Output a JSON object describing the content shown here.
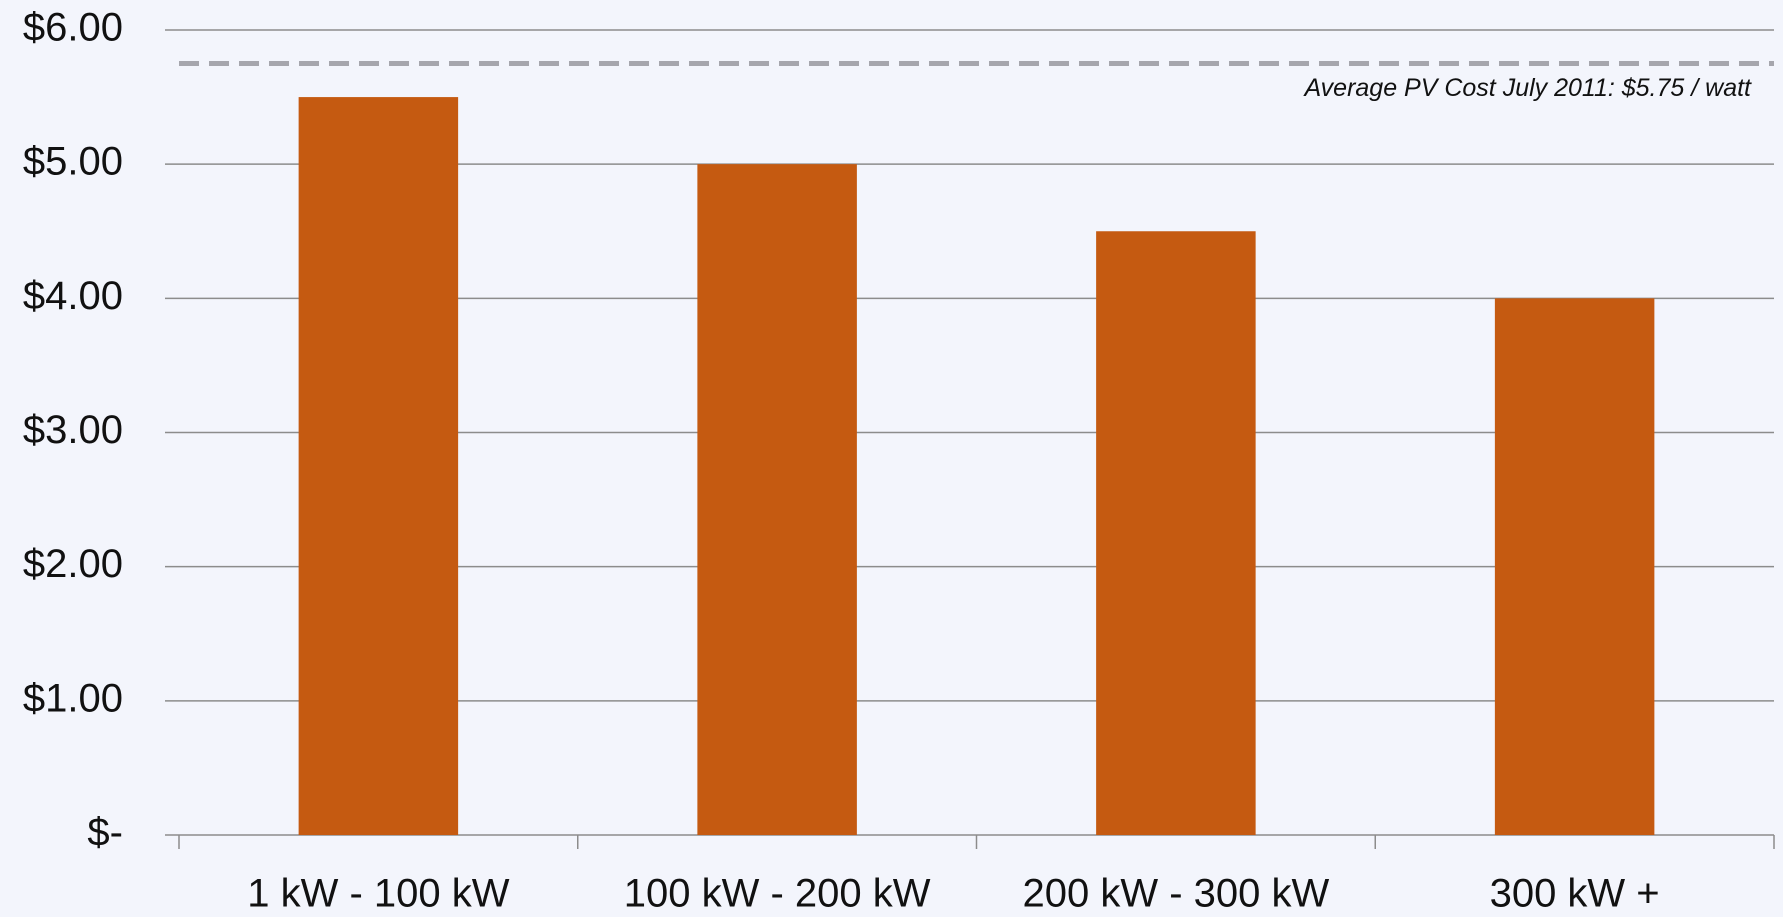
{
  "chart_data": {
    "type": "bar",
    "categories": [
      "1 kW - 100 kW",
      "100 kW - 200 kW",
      "200 kW - 300 kW",
      "300 kW +"
    ],
    "values": [
      5.5,
      5.0,
      4.5,
      4.0
    ],
    "color": "#c55a11",
    "ylim": [
      0,
      6
    ],
    "yticks": [
      {
        "value": 0,
        "label": "$-"
      },
      {
        "value": 1,
        "label": "$1.00"
      },
      {
        "value": 2,
        "label": "$2.00"
      },
      {
        "value": 3,
        "label": "$3.00"
      },
      {
        "value": 4,
        "label": "$4.00"
      },
      {
        "value": 5,
        "label": "$5.00"
      },
      {
        "value": 6,
        "label": "$6.00"
      }
    ],
    "grid": true,
    "reference_line": {
      "value": 5.75,
      "color": "#a6a6ad",
      "label": "Average PV Cost July 2011: $5.75 / watt"
    }
  }
}
